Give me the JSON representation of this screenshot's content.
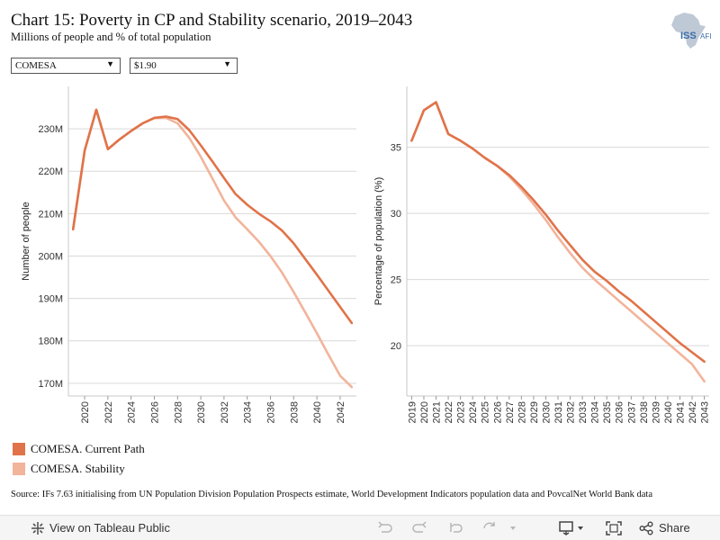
{
  "header": {
    "title": "Chart 15: Poverty in CP and Stability scenario, 2019–2043",
    "subtitle": "Millions of people and % of total population"
  },
  "logo": {
    "text": "ISS",
    "suffix": "AFI",
    "icon": "africa-map-logo"
  },
  "filters": {
    "region": {
      "value": "COMESA"
    },
    "poverty_line": {
      "value": "$1.90"
    }
  },
  "colors": {
    "current_path": "#e07349",
    "stability": "#f2b49b",
    "grid": "#d9d9d9"
  },
  "legend": [
    {
      "label": "COMESA. Current Path",
      "color": "#e07349"
    },
    {
      "label": "COMESA. Stability",
      "color": "#f2b49b"
    }
  ],
  "source": "Source: IFs 7.63 initialising from UN Population Division Population Prospects estimate, World Development Indicators population data and PovcalNet World Bank data",
  "toolbar": {
    "view_label": "View on Tableau Public",
    "share_label": "Share"
  },
  "chart_data": [
    {
      "type": "line",
      "ylabel": "Number of people",
      "x": [
        2019,
        2020,
        2021,
        2022,
        2023,
        2024,
        2025,
        2026,
        2027,
        2028,
        2029,
        2030,
        2031,
        2032,
        2033,
        2034,
        2035,
        2036,
        2037,
        2038,
        2039,
        2040,
        2041,
        2042,
        2043
      ],
      "xticks": [
        2020,
        2022,
        2024,
        2026,
        2028,
        2030,
        2032,
        2034,
        2036,
        2038,
        2040,
        2042
      ],
      "yticks": [
        170,
        180,
        190,
        200,
        210,
        220,
        230
      ],
      "tick_suffix": "M",
      "ylim": [
        167,
        240
      ],
      "xlim": [
        2018.6,
        2043.4
      ],
      "series": [
        {
          "name": "COMESA. Current Path",
          "values": [
            206.3,
            224.9,
            234.5,
            225.2,
            227.5,
            229.5,
            231.3,
            232.6,
            232.9,
            232.3,
            229.7,
            226.1,
            222.3,
            218.4,
            214.6,
            212.1,
            210.0,
            208.2,
            206.0,
            203.0,
            199.3,
            195.6,
            191.8,
            188.0,
            184.2
          ]
        },
        {
          "name": "COMESA. Stability",
          "values": [
            206.3,
            224.9,
            234.5,
            225.2,
            227.5,
            229.5,
            231.3,
            232.5,
            232.6,
            231.3,
            227.9,
            223.4,
            218.3,
            213.1,
            209.1,
            206.3,
            203.4,
            200.0,
            196.1,
            191.5,
            186.7,
            181.8,
            176.7,
            171.8,
            169.1
          ]
        }
      ]
    },
    {
      "type": "line",
      "ylabel": "Percentage of population (%)",
      "x": [
        2019,
        2020,
        2021,
        2022,
        2023,
        2024,
        2025,
        2026,
        2027,
        2028,
        2029,
        2030,
        2031,
        2032,
        2033,
        2034,
        2035,
        2036,
        2037,
        2038,
        2039,
        2040,
        2041,
        2042,
        2043
      ],
      "xticks": [
        2019,
        2020,
        2021,
        2022,
        2023,
        2024,
        2025,
        2026,
        2027,
        2028,
        2029,
        2030,
        2031,
        2032,
        2033,
        2034,
        2035,
        2036,
        2037,
        2038,
        2039,
        2040,
        2041,
        2042,
        2043
      ],
      "yticks": [
        20,
        25,
        30,
        35
      ],
      "tick_suffix": "",
      "ylim": [
        16.2,
        39.6
      ],
      "xlim": [
        2018.6,
        2043.4
      ],
      "series": [
        {
          "name": "COMESA. Current Path",
          "values": [
            35.5,
            37.8,
            38.4,
            36.0,
            35.5,
            34.9,
            34.2,
            33.6,
            32.9,
            32.0,
            31.0,
            29.9,
            28.7,
            27.6,
            26.5,
            25.6,
            24.9,
            24.1,
            23.4,
            22.6,
            21.8,
            21.0,
            20.2,
            19.5,
            18.8
          ]
        },
        {
          "name": "COMESA. Stability",
          "values": [
            35.5,
            37.8,
            38.4,
            36.0,
            35.5,
            34.9,
            34.2,
            33.6,
            32.8,
            31.8,
            30.7,
            29.5,
            28.2,
            27.0,
            25.9,
            25.0,
            24.2,
            23.4,
            22.6,
            21.8,
            21.0,
            20.2,
            19.4,
            18.6,
            17.3
          ]
        }
      ]
    }
  ]
}
